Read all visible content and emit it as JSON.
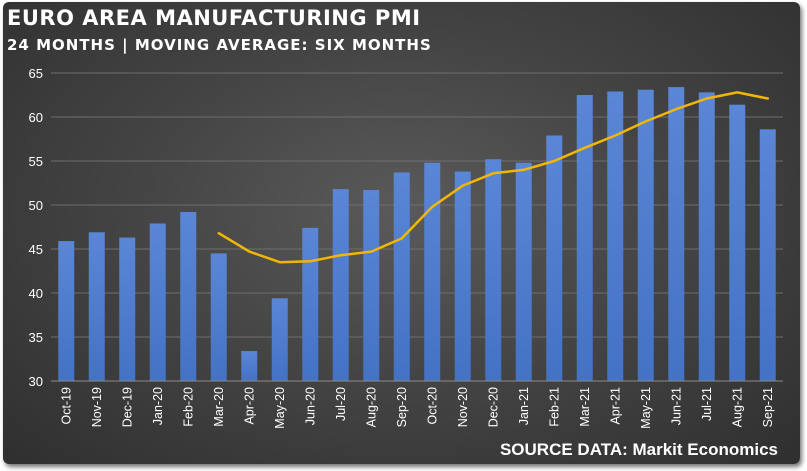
{
  "header": {
    "title": "EURO AREA MANUFACTURING PMI",
    "subtitle": "24 MONTHS | MOVING AVERAGE: SIX MONTHS"
  },
  "footer": {
    "source": "SOURCE DATA: Markit Economics"
  },
  "colors": {
    "bar": "#4472c4",
    "bar_top": "#5b86d6",
    "moving_average": "#f2b705",
    "gridline": "#6e6e6e",
    "text": "#ffffff"
  },
  "chart_data": {
    "type": "bar",
    "title": "EURO AREA MANUFACTURING PMI",
    "subtitle": "24 MONTHS | MOVING AVERAGE: SIX MONTHS",
    "categories": [
      "Oct-19",
      "Nov-19",
      "Dec-19",
      "Jan-20",
      "Feb-20",
      "Mar-20",
      "Apr-20",
      "May-20",
      "Jun-20",
      "Jul-20",
      "Aug-20",
      "Sep-20",
      "Oct-20",
      "Nov-20",
      "Dec-20",
      "Jan-21",
      "Feb-21",
      "Mar-21",
      "Apr-21",
      "May-21",
      "Jun-21",
      "Jul-21",
      "Aug-21",
      "Sep-21"
    ],
    "series": [
      {
        "type": "bar",
        "values": [
          45.9,
          46.9,
          46.3,
          47.9,
          49.2,
          44.5,
          33.4,
          39.4,
          47.4,
          51.8,
          51.7,
          53.7,
          54.8,
          53.8,
          55.2,
          54.8,
          57.9,
          62.5,
          62.9,
          63.1,
          63.4,
          62.8,
          61.4,
          58.6
        ]
      },
      {
        "type": "line",
        "values": [
          null,
          null,
          null,
          null,
          null,
          46.8,
          44.7,
          43.5,
          43.6,
          44.3,
          44.7,
          46.2,
          49.8,
          52.2,
          53.6,
          54.0,
          55.0,
          56.5,
          57.9,
          59.5,
          60.9,
          62.1,
          62.8,
          62.1
        ]
      }
    ],
    "ylim": [
      30,
      65
    ],
    "yticks": [
      "30",
      "35",
      "40",
      "45",
      "50",
      "55",
      "60",
      "65"
    ],
    "grid": true,
    "legend": "none"
  }
}
